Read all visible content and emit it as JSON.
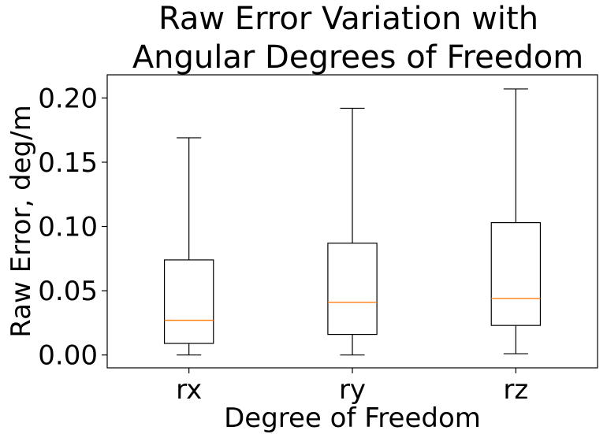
{
  "chart_data": {
    "type": "box",
    "title": "Raw Error Variation with\nAngular Degrees of Freedom",
    "title_lines": [
      "Raw Error Variation with",
      "Angular Degrees of Freedom"
    ],
    "xlabel": "Degree of Freedom",
    "ylabel": "Raw Error, deg/m",
    "categories": [
      "rx",
      "ry",
      "rz"
    ],
    "boxes": [
      {
        "label": "rx",
        "whisker_low": 0.0,
        "q1": 0.009,
        "median": 0.027,
        "q3": 0.074,
        "whisker_high": 0.169
      },
      {
        "label": "ry",
        "whisker_low": 0.0,
        "q1": 0.016,
        "median": 0.041,
        "q3": 0.087,
        "whisker_high": 0.192
      },
      {
        "label": "rz",
        "whisker_low": 0.001,
        "q1": 0.023,
        "median": 0.044,
        "q3": 0.103,
        "whisker_high": 0.207
      }
    ],
    "ylim": [
      -0.01,
      0.218
    ],
    "yticks": [
      0.0,
      0.05,
      0.1,
      0.15,
      0.2
    ],
    "ytick_labels": [
      "0.00",
      "0.05",
      "0.10",
      "0.15",
      "0.20"
    ],
    "grid": false,
    "legend": false,
    "colors": {
      "box": "#000000",
      "median": "#ff7f0e",
      "whisker": "#000000"
    }
  }
}
